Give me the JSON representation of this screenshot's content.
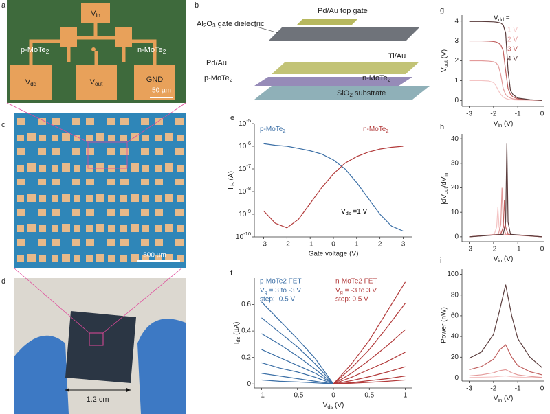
{
  "images": {
    "panel_a": {
      "letter": "a",
      "vin": [
        "V",
        "in"
      ],
      "p_label": [
        "p-MoTe",
        "2"
      ],
      "n_label": [
        "n-MoTe",
        "2"
      ],
      "vdd": [
        "V",
        "dd"
      ],
      "vout": [
        "V",
        "out"
      ],
      "gnd": "GND",
      "scale": "50 µm"
    },
    "panel_b": {
      "letter": "b",
      "dielectric": [
        "Al",
        "2",
        "O",
        "3",
        " gate dielectric"
      ],
      "top_gate": "Pd/Au top gate",
      "pd_au": "Pd/Au",
      "ti_au": "Ti/Au",
      "p_label": [
        "p-MoTe",
        "2"
      ],
      "n_label": [
        "n-MoTe",
        "2"
      ],
      "substrate": [
        "SiO",
        "2",
        " substrate"
      ]
    },
    "panel_c": {
      "letter": "c",
      "scale": "500 µm"
    },
    "panel_d": {
      "letter": "d",
      "scale": "1.2 cm"
    }
  },
  "chart_data": [
    {
      "type": "line",
      "panel": "e",
      "ylog": true,
      "xlabel": "Gate voltage (V)",
      "ylabel": [
        "I",
        "ds",
        " (A)"
      ],
      "xlim": [
        -3.4,
        3.4
      ],
      "xticks": [
        -3,
        -2,
        -1,
        0,
        1,
        2,
        3
      ],
      "ylim": [
        1e-10,
        1e-05
      ],
      "yticks": [
        {
          "value": 1e-10,
          "label": [
            "10",
            "-10"
          ]
        },
        {
          "value": 1e-09,
          "label": [
            "10",
            "-9"
          ]
        },
        {
          "value": 1e-08,
          "label": [
            "10",
            "-8"
          ]
        },
        {
          "value": 1e-07,
          "label": [
            "10",
            "-7"
          ]
        },
        {
          "value": 1e-06,
          "label": [
            "10",
            "-6"
          ]
        },
        {
          "value": 1e-05,
          "label": [
            "10",
            "-5"
          ]
        }
      ],
      "x": [
        -3,
        -2.5,
        -2,
        -1.5,
        -1,
        -0.5,
        0,
        0.5,
        1,
        1.5,
        2,
        2.5,
        3
      ],
      "series": [
        {
          "name": [
            "p-MoTe",
            "2"
          ],
          "color": "#3b6fa6",
          "values": [
            1.3e-06,
            1.1e-06,
            1e-06,
            8e-07,
            6.3e-07,
            4.5e-07,
            2.5e-07,
            1e-07,
            2.5e-08,
            5e-09,
            1e-09,
            3e-10,
            1.8e-10
          ]
        },
        {
          "name": [
            "n-MoTe",
            "2"
          ],
          "color": "#b23a3a",
          "values": [
            1.4e-09,
            4e-10,
            2.5e-10,
            6e-10,
            3e-09,
            1.5e-08,
            6e-08,
            1.8e-07,
            3.5e-07,
            5.5e-07,
            7.5e-07,
            9e-07,
            1e-06
          ]
        }
      ],
      "annotations": [
        {
          "text": [
            "V",
            "ds",
            " =1 V"
          ],
          "color": "#000000"
        }
      ]
    },
    {
      "type": "line",
      "panel": "f",
      "xlabel": [
        "V",
        "ds",
        " (V)"
      ],
      "ylabel": [
        "I",
        "ds",
        " (µA)"
      ],
      "xlim": [
        -1.1,
        1.1
      ],
      "xticks": [
        -1,
        -0.5,
        0,
        0.5,
        1
      ],
      "ylim": [
        -0.03,
        0.8
      ],
      "yticks": [
        0,
        0.2,
        0.4,
        0.6
      ],
      "series": [
        {
          "color": "#3b6fa6",
          "x": [
            -1,
            -0.75,
            -0.5,
            -0.25,
            0
          ],
          "values": [
            0.62,
            0.48,
            0.34,
            0.19,
            0
          ]
        },
        {
          "color": "#3b6fa6",
          "x": [
            -1,
            -0.75,
            -0.5,
            -0.25,
            0
          ],
          "values": [
            0.5,
            0.39,
            0.28,
            0.15,
            0
          ]
        },
        {
          "color": "#3b6fa6",
          "x": [
            -1,
            -0.75,
            -0.5,
            -0.25,
            0
          ],
          "values": [
            0.38,
            0.3,
            0.21,
            0.11,
            0
          ]
        },
        {
          "color": "#3b6fa6",
          "x": [
            -1,
            -0.75,
            -0.5,
            -0.25,
            0
          ],
          "values": [
            0.26,
            0.2,
            0.14,
            0.08,
            0
          ]
        },
        {
          "color": "#3b6fa6",
          "x": [
            -1,
            -0.75,
            -0.5,
            -0.25,
            0
          ],
          "values": [
            0.16,
            0.12,
            0.09,
            0.05,
            0
          ]
        },
        {
          "color": "#3b6fa6",
          "x": [
            -1,
            -0.75,
            -0.5,
            -0.25,
            0
          ],
          "values": [
            0.08,
            0.06,
            0.04,
            0.02,
            0
          ]
        },
        {
          "color": "#3b6fa6",
          "x": [
            -1,
            -0.75,
            -0.5,
            -0.25,
            0
          ],
          "values": [
            0.03,
            0.02,
            0.015,
            0.008,
            0
          ]
        },
        {
          "color": "#b23a3a",
          "x": [
            0,
            0.25,
            0.5,
            0.75,
            1
          ],
          "values": [
            0,
            0.15,
            0.33,
            0.55,
            0.77
          ]
        },
        {
          "color": "#b23a3a",
          "x": [
            0,
            0.25,
            0.5,
            0.75,
            1
          ],
          "values": [
            0,
            0.12,
            0.26,
            0.43,
            0.61
          ]
        },
        {
          "color": "#b23a3a",
          "x": [
            0,
            0.25,
            0.5,
            0.75,
            1
          ],
          "values": [
            0,
            0.08,
            0.18,
            0.29,
            0.41
          ]
        },
        {
          "color": "#b23a3a",
          "x": [
            0,
            0.25,
            0.5,
            0.75,
            1
          ],
          "values": [
            0,
            0.05,
            0.11,
            0.17,
            0.24
          ]
        },
        {
          "color": "#b23a3a",
          "x": [
            0,
            0.25,
            0.5,
            0.75,
            1
          ],
          "values": [
            0,
            0.025,
            0.055,
            0.09,
            0.13
          ]
        },
        {
          "color": "#b23a3a",
          "x": [
            0,
            0.25,
            0.5,
            0.75,
            1
          ],
          "values": [
            0,
            0.01,
            0.025,
            0.04,
            0.06
          ]
        },
        {
          "color": "#b23a3a",
          "x": [
            0,
            0.25,
            0.5,
            0.75,
            1
          ],
          "values": [
            0,
            0.005,
            0.012,
            0.02,
            0.03
          ]
        }
      ],
      "annotations": [
        {
          "text": "p-MoTe2 FET",
          "color": "#3b6fa6"
        },
        {
          "text": [
            "V",
            "g",
            " = 3 to -3 V"
          ],
          "color": "#3b6fa6"
        },
        {
          "text": "step: -0.5 V",
          "color": "#3b6fa6"
        },
        {
          "text": "n-MoTe2 FET",
          "color": "#b23a3a"
        },
        {
          "text": [
            "V",
            "g",
            " = -3 to 3 V"
          ],
          "color": "#b23a3a"
        },
        {
          "text": "step: 0.5 V",
          "color": "#b23a3a"
        }
      ]
    },
    {
      "type": "line",
      "panel": "g",
      "xlabel": [
        "V",
        "in",
        " (V)"
      ],
      "ylabel": [
        "V",
        "out",
        " (V)"
      ],
      "xlim": [
        -3.3,
        0.1
      ],
      "xticks": [
        -3,
        -2,
        -1,
        0
      ],
      "ylim": [
        -0.3,
        4.3
      ],
      "yticks": [
        0,
        1,
        2,
        3,
        4
      ],
      "legend_title": [
        "V",
        "dd",
        " ="
      ],
      "x": [
        -3,
        -2.5,
        -2.2,
        -2,
        -1.9,
        -1.8,
        -1.7,
        -1.6,
        -1.5,
        -1.4,
        -1.3,
        -1.2,
        -1,
        -0.5,
        0
      ],
      "series": [
        {
          "name": "1 V",
          "color": "#f4c4c4",
          "values": [
            1,
            1,
            0.98,
            0.9,
            0.75,
            0.5,
            0.3,
            0.17,
            0.1,
            0.06,
            0.04,
            0.03,
            0.02,
            0.01,
            0
          ]
        },
        {
          "name": "2 V",
          "color": "#e39a9a",
          "values": [
            2,
            2,
            1.98,
            1.95,
            1.9,
            1.75,
            1.3,
            0.6,
            0.3,
            0.18,
            0.12,
            0.08,
            0.05,
            0.02,
            0
          ]
        },
        {
          "name": "3 V",
          "color": "#c0605f",
          "values": [
            3,
            3,
            2.99,
            2.97,
            2.95,
            2.9,
            2.8,
            2.5,
            1.5,
            0.6,
            0.3,
            0.18,
            0.08,
            0.03,
            0
          ]
        },
        {
          "name": "4 V",
          "color": "#5a3c3c",
          "values": [
            3.98,
            3.98,
            3.97,
            3.96,
            3.95,
            3.93,
            3.9,
            3.8,
            3.4,
            1.5,
            0.5,
            0.3,
            0.12,
            0.04,
            0
          ]
        }
      ]
    },
    {
      "type": "line",
      "panel": "h",
      "xlabel": [
        "V",
        "in",
        " (V)"
      ],
      "ylabel": [
        "|dV",
        "out",
        "/dV",
        "in",
        "|"
      ],
      "xlim": [
        -3.3,
        0.1
      ],
      "xticks": [
        -3,
        -2,
        -1,
        0
      ],
      "ylim": [
        -2,
        42
      ],
      "yticks": [
        0,
        10,
        20,
        30,
        40
      ],
      "series": [
        {
          "color": "#f4c4c4",
          "x": [
            -3,
            -1.97,
            -1.87,
            -1.82,
            -1.77,
            -1.67,
            0
          ],
          "values": [
            0,
            1,
            4,
            12,
            4,
            1,
            0
          ]
        },
        {
          "color": "#e39a9a",
          "x": [
            -3,
            -1.8,
            -1.7,
            -1.65,
            -1.6,
            -1.5,
            0
          ],
          "values": [
            0,
            1,
            5,
            20,
            5,
            1,
            0
          ]
        },
        {
          "color": "#c0605f",
          "x": [
            -3,
            -1.7,
            -1.6,
            -1.55,
            -1.5,
            -1.4,
            0
          ],
          "values": [
            0,
            1,
            4,
            15,
            4,
            1,
            0
          ]
        },
        {
          "color": "#5a3c3c",
          "x": [
            -3,
            -1.6,
            -1.5,
            -1.45,
            -1.4,
            -1.3,
            0
          ],
          "values": [
            0,
            1,
            6,
            38,
            6,
            1,
            0
          ]
        }
      ]
    },
    {
      "type": "line",
      "panel": "i",
      "xlabel": [
        "V",
        "in",
        " (V)"
      ],
      "ylabel": "Power (nW)",
      "xlim": [
        -3.3,
        0.1
      ],
      "xticks": [
        -3,
        -2,
        -1,
        0
      ],
      "ylim": [
        -3,
        105
      ],
      "yticks": [
        0,
        20,
        40,
        60,
        80,
        100
      ],
      "x": [
        -3,
        -2.5,
        -2,
        -1.75,
        -1.5,
        -1.25,
        -1,
        -0.5,
        0
      ],
      "series": [
        {
          "color": "#f4c4c4",
          "values": [
            0.5,
            0.7,
            1,
            1.5,
            2,
            1.2,
            0.8,
            0.4,
            0.1
          ]
        },
        {
          "color": "#e39a9a",
          "values": [
            2,
            3,
            5,
            7,
            8,
            5,
            3,
            1.5,
            0.5
          ]
        },
        {
          "color": "#c0605f",
          "values": [
            8,
            11,
            18,
            27,
            32,
            20,
            12,
            6,
            3
          ]
        },
        {
          "color": "#5a3c3c",
          "values": [
            19,
            25,
            42,
            65,
            90,
            60,
            38,
            20,
            10
          ]
        }
      ]
    }
  ]
}
